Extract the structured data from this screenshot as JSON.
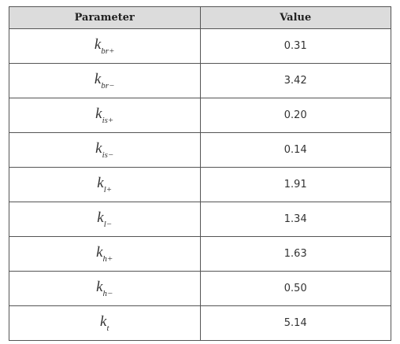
{
  "table": {
    "header": [
      "Parameter",
      "Value"
    ],
    "rows": [
      [
        {
          "symbol": "k",
          "subscript": "br+"
        },
        "0.31"
      ],
      [
        {
          "symbol": "k",
          "subscript": "br−"
        },
        "3.42"
      ],
      [
        {
          "symbol": "k",
          "subscript": "is+"
        },
        "0.20"
      ],
      [
        {
          "symbol": "k",
          "subscript": "is−"
        },
        "0.14"
      ],
      [
        {
          "symbol": "k",
          "subscript": "l+"
        },
        "1.91"
      ],
      [
        {
          "symbol": "k",
          "subscript": "l−"
        },
        "1.34"
      ],
      [
        {
          "symbol": "k",
          "subscript": "h+"
        },
        "1.63"
      ],
      [
        {
          "symbol": "k",
          "subscript": "h−"
        },
        "0.50"
      ],
      [
        {
          "symbol": "k",
          "subscript": "t"
        },
        "5.14"
      ]
    ]
  }
}
